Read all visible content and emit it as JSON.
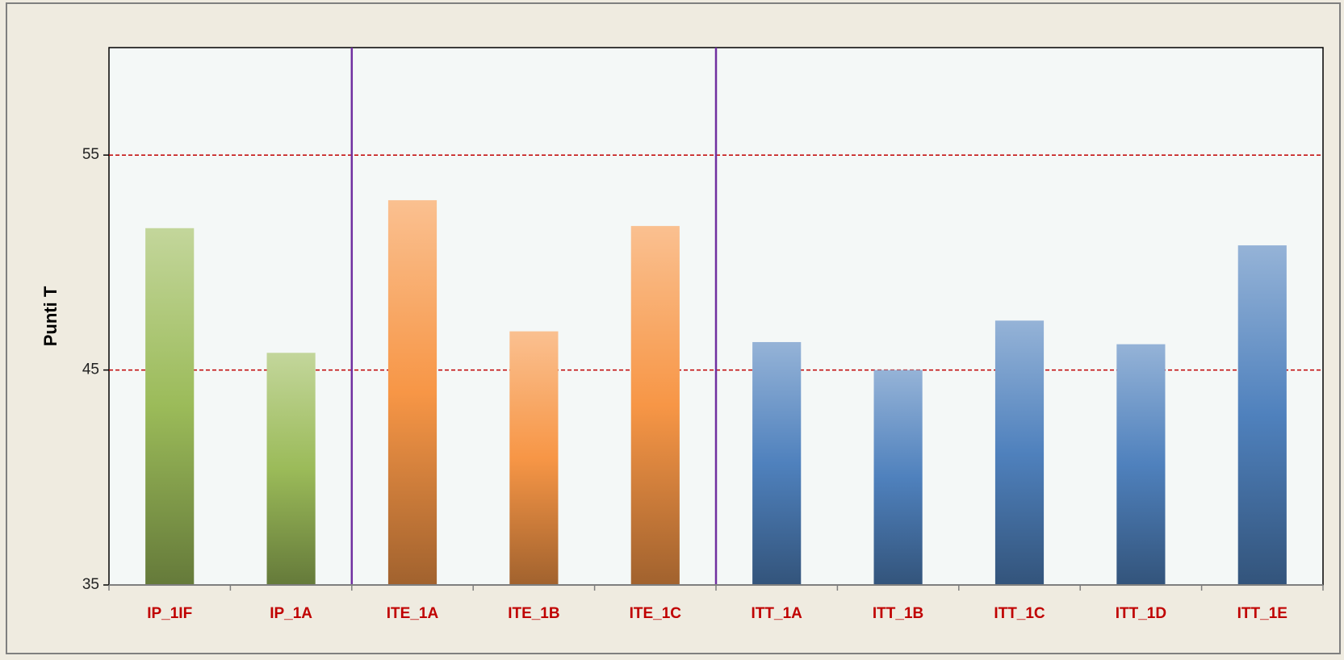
{
  "chart_data": {
    "type": "bar",
    "y_label": "Punti T",
    "categories": [
      "IP_1IF",
      "IP_1A",
      "ITE_1A",
      "ITE_1B",
      "ITE_1C",
      "ITT_1A",
      "ITT_1B",
      "ITT_1C",
      "ITT_1D",
      "ITT_1E"
    ],
    "values": [
      51.6,
      45.8,
      52.9,
      46.8,
      51.7,
      46.3,
      45.0,
      47.3,
      46.2,
      50.8
    ],
    "colors": [
      "#9bbb59",
      "#9bbb59",
      "#f79646",
      "#f79646",
      "#f79646",
      "#4f81bd",
      "#4f81bd",
      "#4f81bd",
      "#4f81bd",
      "#4f81bd"
    ],
    "ylim": [
      35,
      60
    ],
    "yticks": [
      35,
      45,
      55
    ],
    "grid": true
  }
}
